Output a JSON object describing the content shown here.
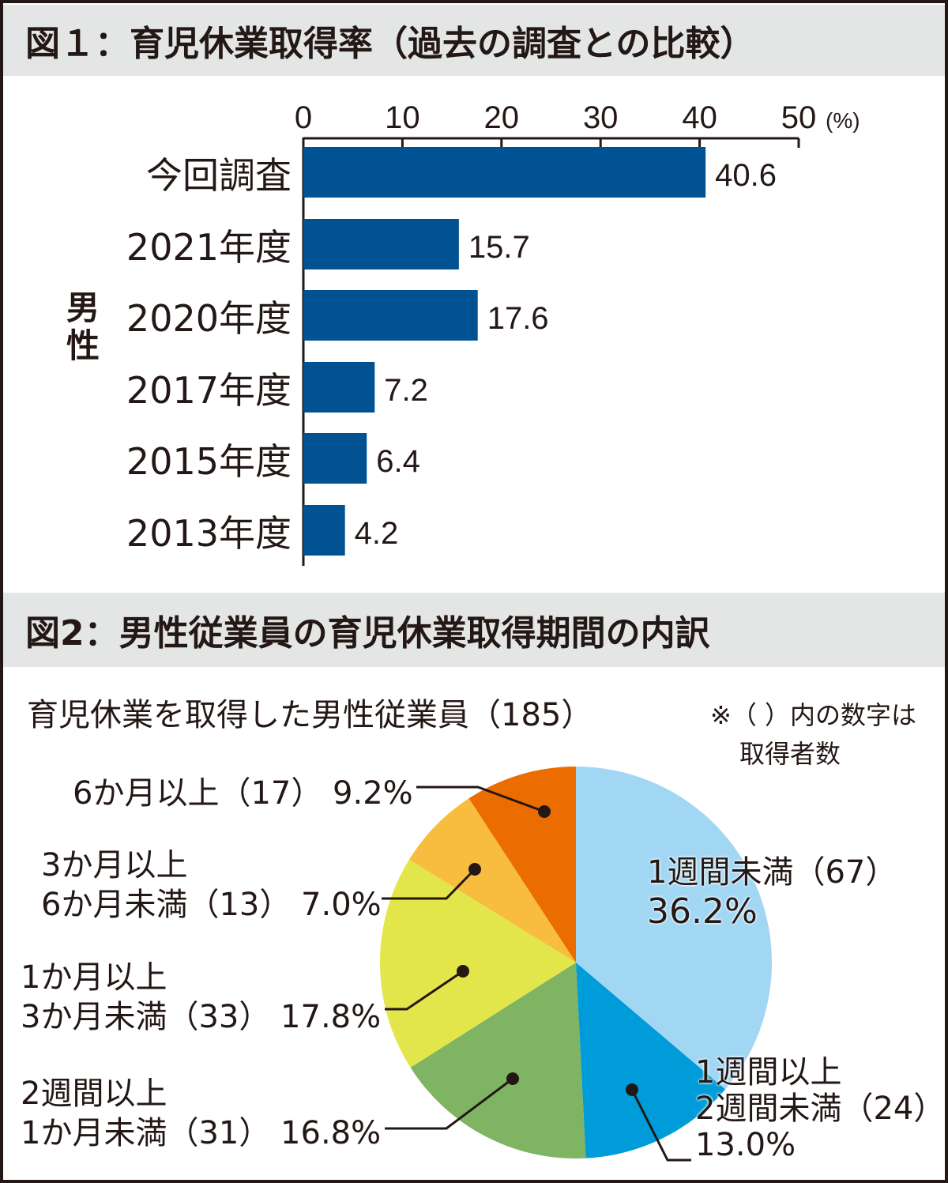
{
  "fig1": {
    "title": "図１：育児休業取得率（過去の調査との比較）",
    "group_label": "男性"
  },
  "fig2": {
    "title": "図2：男性従業員の育児休業取得期間の内訳",
    "subtitle": "育児休業を取得した男性従業員（185）",
    "note_line1": "※（ ）内の数字は",
    "note_line2": "取得者数"
  },
  "chart_data": [
    {
      "type": "bar",
      "orientation": "horizontal",
      "unit": "(%)",
      "xlim": [
        0,
        50
      ],
      "ticks": [
        "0",
        "10",
        "20",
        "30",
        "40",
        "50"
      ],
      "categories": [
        "今回調査",
        "2021年度",
        "2020年度",
        "2017年度",
        "2015年度",
        "2013年度"
      ],
      "values": [
        40.6,
        15.7,
        17.6,
        7.2,
        6.4,
        4.2
      ],
      "value_labels": [
        "40.6",
        "15.7",
        "17.6",
        "7.2",
        "6.4",
        "4.2"
      ],
      "color": "#005293"
    },
    {
      "type": "pie",
      "start": "top",
      "direction": "clockwise",
      "slices": [
        {
          "label_lines": [
            "1週間未満（67）",
            "36.2%"
          ],
          "count": 67,
          "value": 36.2,
          "color": "#a2d7f4"
        },
        {
          "label_lines": [
            "1週間以上",
            "2週間未満（24）",
            "13.0%"
          ],
          "count": 24,
          "value": 13.0,
          "color": "#009cd9"
        },
        {
          "label_lines": [
            "2週間以上",
            "1か月未満（31） 16.8%"
          ],
          "count": 31,
          "value": 16.8,
          "color": "#7fb463"
        },
        {
          "label_lines": [
            "1か月以上",
            "3か月未満（33） 17.8%"
          ],
          "count": 33,
          "value": 17.8,
          "color": "#e3e64a"
        },
        {
          "label_lines": [
            "3か月以上",
            "6か月未満（13） 7.0%"
          ],
          "count": 13,
          "value": 7.0,
          "color": "#f8bd3e"
        },
        {
          "label_lines": [
            "6か月以上（17） 9.2%"
          ],
          "count": 17,
          "value": 9.2,
          "color": "#eb6d00"
        }
      ]
    }
  ]
}
